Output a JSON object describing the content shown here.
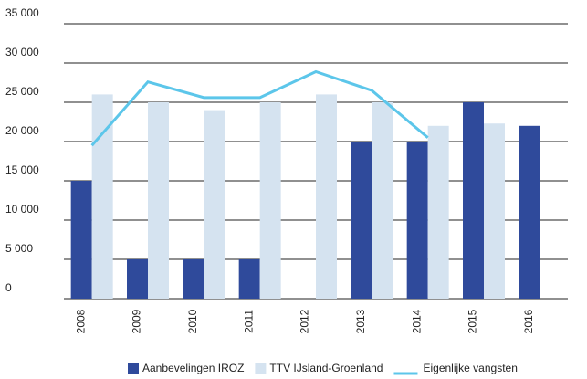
{
  "chart_data": {
    "type": "bar",
    "categories": [
      "2008",
      "2009",
      "2010",
      "2011",
      "2012",
      "2013",
      "2014",
      "2015",
      "2016"
    ],
    "series": [
      {
        "name": "Aanbevelingen IROZ",
        "color": "#2f4a9b",
        "values": [
          15000,
          5000,
          5000,
          5000,
          null,
          20000,
          20000,
          25000,
          22000
        ]
      },
      {
        "name": "TTV IJsland-Groenland",
        "color": "#d5e3f0",
        "values": [
          26000,
          25000,
          24000,
          25000,
          26000,
          25000,
          22000,
          22300,
          null
        ]
      },
      {
        "name": "Eigenlijke vangsten",
        "color": "#5cc6ea",
        "type": "line",
        "values": [
          19500,
          27600,
          25600,
          25600,
          28900,
          26500,
          20500,
          null,
          null
        ]
      }
    ],
    "ylim": [
      0,
      35000
    ],
    "yticks": [
      0,
      {
        "value": 5000,
        "label": "5 000"
      },
      {
        "value": 10000,
        "label": "10 000"
      },
      {
        "value": 15000,
        "label": "15 000"
      },
      {
        "value": 20000,
        "label": "20 000"
      },
      {
        "value": 25000,
        "label": "25 000"
      },
      {
        "value": 30000,
        "label": "30 000"
      },
      {
        "value": 35000,
        "label": "35 000"
      }
    ],
    "grid": true,
    "legend": "bottom"
  }
}
